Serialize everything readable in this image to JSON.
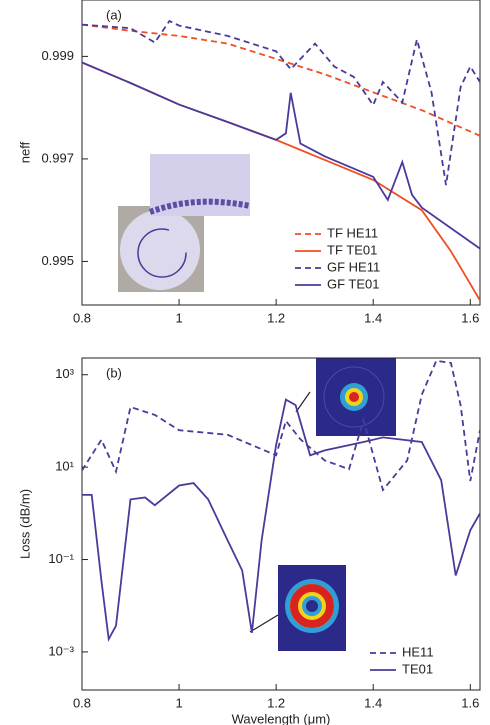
{
  "chart_data": [
    {
      "type": "line",
      "panel_label": "(a)",
      "ylabel": "neff",
      "xlim": [
        0.8,
        1.62
      ],
      "ylim": [
        0.99415,
        1.0001
      ],
      "xticks": [
        0.8,
        1,
        1.2,
        1.4,
        1.6
      ],
      "yticks": [
        0.995,
        0.997,
        0.999
      ],
      "legend": "lower right",
      "series": [
        {
          "name": "TF HE11",
          "color": "#f04e23",
          "style": "dashed",
          "x": [
            0.8,
            0.9,
            1.0,
            1.1,
            1.2,
            1.3,
            1.4,
            1.5,
            1.62
          ],
          "values": [
            0.99962,
            0.9995,
            0.9994,
            0.99925,
            0.99895,
            0.99865,
            0.9983,
            0.99795,
            0.99745
          ]
        },
        {
          "name": "TF TE01",
          "color": "#f04e23",
          "style": "solid",
          "x": [
            0.8,
            0.9,
            1.0,
            1.1,
            1.2,
            1.3,
            1.4,
            1.5,
            1.56,
            1.62
          ],
          "values": [
            0.99888,
            0.99848,
            0.99806,
            0.99772,
            0.99737,
            0.99698,
            0.99659,
            0.996,
            0.9952,
            0.99424
          ]
        },
        {
          "name": "GF HE11",
          "color": "#4b3a9a",
          "style": "dashed",
          "x": [
            0.8,
            0.9,
            0.95,
            0.98,
            1.0,
            1.1,
            1.2,
            1.23,
            1.28,
            1.32,
            1.36,
            1.4,
            1.42,
            1.46,
            1.49,
            1.52,
            1.55,
            1.58,
            1.6,
            1.62
          ],
          "values": [
            0.99962,
            0.99955,
            0.99927,
            0.99969,
            0.9996,
            0.9994,
            0.9991,
            0.99875,
            0.99925,
            0.9988,
            0.9986,
            0.99805,
            0.9985,
            0.9981,
            0.99933,
            0.9983,
            0.99649,
            0.9984,
            0.9988,
            0.9985
          ]
        },
        {
          "name": "GF TE01",
          "color": "#4b3a9a",
          "style": "solid",
          "x": [
            0.8,
            0.9,
            1.0,
            1.1,
            1.2,
            1.22,
            1.23,
            1.25,
            1.3,
            1.4,
            1.43,
            1.46,
            1.48,
            1.5,
            1.56,
            1.62
          ],
          "values": [
            0.99888,
            0.99848,
            0.99806,
            0.99772,
            0.99737,
            0.9975,
            0.99829,
            0.9973,
            0.99705,
            0.99665,
            0.9962,
            0.99694,
            0.9963,
            0.99605,
            0.99565,
            0.99525
          ]
        }
      ]
    },
    {
      "type": "line",
      "panel_label": "(b)",
      "ylabel": "Loss (dB/m)",
      "xlabel": "Wavelength (μm)",
      "xlim": [
        0.8,
        1.62
      ],
      "ylim": [
        0.00015,
        2300
      ],
      "log_y": true,
      "xticks": [
        0.8,
        1,
        1.2,
        1.4,
        1.6
      ],
      "yticks": [
        {
          "value": 0.001,
          "label": "10⁻³"
        },
        {
          "value": 0.1,
          "label": "10⁻¹"
        },
        {
          "value": 10,
          "label": "10¹"
        },
        {
          "value": 1000,
          "label": "10³"
        }
      ],
      "legend": "lower right",
      "series": [
        {
          "name": "HE11",
          "color": "#4b3a9a",
          "style": "dashed",
          "x": [
            0.8,
            0.84,
            0.87,
            0.9,
            0.95,
            1.0,
            1.1,
            1.2,
            1.22,
            1.25,
            1.3,
            1.35,
            1.38,
            1.42,
            1.47,
            1.5,
            1.53,
            1.56,
            1.58,
            1.6,
            1.62
          ],
          "values": [
            8.5,
            39,
            8,
            200,
            135,
            63,
            50,
            18,
            100,
            40,
            14,
            9,
            105,
            3.2,
            14,
            370,
            2000,
            1800,
            220,
            5,
            63
          ]
        },
        {
          "name": "TE01",
          "color": "#4b3a9a",
          "style": "solid",
          "x": [
            0.8,
            0.82,
            0.84,
            0.855,
            0.87,
            0.9,
            0.93,
            0.95,
            1.0,
            1.03,
            1.06,
            1.1,
            1.13,
            1.15,
            1.17,
            1.2,
            1.22,
            1.24,
            1.27,
            1.3,
            1.38,
            1.42,
            1.5,
            1.54,
            1.57,
            1.6,
            1.62
          ],
          "values": [
            2.5,
            2.5,
            0.035,
            0.0019,
            0.0037,
            2,
            2.2,
            1.5,
            4,
            4.5,
            2,
            0.26,
            0.058,
            0.0026,
            0.26,
            30,
            290,
            220,
            18,
            23,
            35,
            44,
            35,
            5.2,
            0.045,
            0.43,
            1
          ]
        }
      ]
    }
  ]
}
